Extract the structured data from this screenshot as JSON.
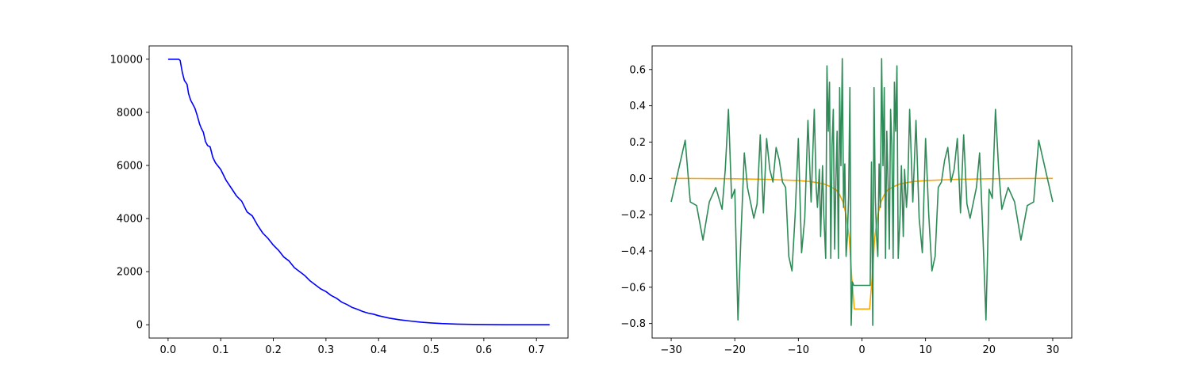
{
  "chart_data": [
    {
      "type": "line",
      "title": "",
      "xlabel": "",
      "ylabel": "",
      "xlim": [
        -0.036,
        0.76
      ],
      "ylim": [
        -500,
        10500
      ],
      "x_ticks": [
        "0.0",
        "0.1",
        "0.2",
        "0.3",
        "0.4",
        "0.5",
        "0.6",
        "0.7"
      ],
      "y_ticks": [
        "0",
        "2000",
        "4000",
        "6000",
        "8000",
        "10000"
      ],
      "grid": false,
      "series": [
        {
          "color": "#0000ff",
          "x": [
            0.0,
            0.01,
            0.02,
            0.023,
            0.027,
            0.031,
            0.036,
            0.039,
            0.043,
            0.047,
            0.051,
            0.055,
            0.06,
            0.063,
            0.067,
            0.071,
            0.075,
            0.08,
            0.085,
            0.09,
            0.094,
            0.1,
            0.11,
            0.12,
            0.13,
            0.14,
            0.15,
            0.16,
            0.17,
            0.18,
            0.19,
            0.2,
            0.21,
            0.22,
            0.23,
            0.24,
            0.25,
            0.26,
            0.27,
            0.28,
            0.29,
            0.3,
            0.31,
            0.32,
            0.33,
            0.34,
            0.35,
            0.36,
            0.37,
            0.38,
            0.39,
            0.4,
            0.42,
            0.44,
            0.46,
            0.48,
            0.5,
            0.52,
            0.55,
            0.58,
            0.62,
            0.66,
            0.7,
            0.725
          ],
          "y": [
            10000,
            10000,
            10000,
            9950,
            9500,
            9200,
            9050,
            8700,
            8450,
            8300,
            8150,
            7900,
            7550,
            7400,
            7250,
            6900,
            6750,
            6700,
            6300,
            6100,
            6000,
            5850,
            5450,
            5150,
            4850,
            4650,
            4250,
            4100,
            3750,
            3450,
            3250,
            3000,
            2800,
            2550,
            2400,
            2150,
            2000,
            1850,
            1650,
            1500,
            1350,
            1250,
            1100,
            1000,
            850,
            760,
            650,
            580,
            500,
            440,
            400,
            340,
            250,
            190,
            140,
            100,
            70,
            45,
            25,
            12,
            5,
            2,
            0,
            0
          ]
        }
      ]
    },
    {
      "type": "line",
      "title": "",
      "xlabel": "",
      "ylabel": "",
      "xlim": [
        -33,
        33
      ],
      "ylim": [
        -0.88,
        0.73
      ],
      "x_ticks": [
        "−30",
        "−20",
        "−10",
        "0",
        "10",
        "20",
        "30"
      ],
      "y_ticks": [
        "−0.8",
        "−0.6",
        "−0.4",
        "−0.2",
        "0.0",
        "0.2",
        "0.4",
        "0.6"
      ],
      "grid": false,
      "series": [
        {
          "color": "#ffa500",
          "x": [
            -30,
            -25,
            -20,
            -15,
            -10,
            -8,
            -6,
            -5,
            -4,
            -3.5,
            -3,
            -2.5,
            -2,
            -1.6,
            -1.2,
            1.2,
            1.6,
            2,
            2.5,
            3,
            3.5,
            4,
            5,
            6,
            8,
            10,
            15,
            20,
            25,
            30
          ],
          "y": [
            0,
            -0.001,
            -0.002,
            -0.005,
            -0.012,
            -0.018,
            -0.03,
            -0.045,
            -0.065,
            -0.09,
            -0.13,
            -0.2,
            -0.33,
            -0.55,
            -0.72,
            -0.72,
            -0.55,
            -0.33,
            -0.2,
            -0.13,
            -0.09,
            -0.065,
            -0.045,
            -0.03,
            -0.018,
            -0.012,
            -0.005,
            -0.002,
            -0.001,
            0
          ]
        },
        {
          "color": "#2e8b57",
          "x": [
            -30,
            -27.8,
            -27,
            -26,
            -25,
            -24,
            -23,
            -22,
            -21.5,
            -21,
            -20.5,
            -20,
            -19.5,
            -19,
            -18.5,
            -18,
            -17,
            -16.5,
            -16,
            -15.5,
            -15,
            -14.5,
            -14,
            -13.5,
            -13,
            -12.5,
            -12,
            -11.5,
            -11,
            -10.5,
            -10,
            -9.5,
            -9,
            -8.5,
            -8,
            -7.5,
            -7.2,
            -7,
            -6.7,
            -6.5,
            -6.2,
            -6,
            -5.7,
            -5.5,
            -5.3,
            -5.1,
            -4.9,
            -4.7,
            -4.5,
            -4.3,
            -4.1,
            -3.9,
            -3.7,
            -3.5,
            -3.3,
            -3.1,
            -2.9,
            -2.7,
            -2.5,
            -2.3,
            -2.1,
            -1.9,
            -1.7,
            -1.5,
            -1.3,
            -1.1,
            1.1,
            1.3,
            1.5,
            1.7,
            1.9,
            2.1,
            2.3,
            2.5,
            2.7,
            2.9,
            3.1,
            3.3,
            3.5,
            3.7,
            3.9,
            4.1,
            4.3,
            4.5,
            4.7,
            4.9,
            5.1,
            5.3,
            5.5,
            5.7,
            6,
            6.2,
            6.5,
            6.7,
            7,
            7.2,
            7.5,
            8,
            8.5,
            9,
            9.5,
            10,
            10.5,
            11,
            11.5,
            12,
            12.5,
            13,
            13.5,
            14,
            14.5,
            15,
            15.5,
            16,
            16.5,
            17,
            18,
            18.5,
            19,
            19.5,
            20,
            20.5,
            21,
            21.5,
            22,
            23,
            24,
            25,
            26,
            27,
            27.8,
            30
          ],
          "y": [
            -0.13,
            0.21,
            -0.13,
            -0.15,
            -0.34,
            -0.13,
            -0.05,
            -0.17,
            0.05,
            0.38,
            -0.11,
            -0.06,
            -0.78,
            -0.29,
            0.14,
            -0.05,
            -0.22,
            -0.14,
            0.24,
            -0.19,
            0.22,
            0.05,
            -0.02,
            0.17,
            0.1,
            -0.02,
            -0.05,
            -0.43,
            -0.51,
            -0.2,
            0.22,
            -0.41,
            -0.22,
            0.32,
            -0.13,
            0.38,
            -0.05,
            -0.16,
            0.05,
            -0.32,
            0.07,
            -0.2,
            -0.44,
            0.62,
            0.26,
            0.53,
            -0.44,
            0.18,
            0.38,
            -0.39,
            -0.02,
            0.26,
            -0.44,
            0.5,
            0.07,
            0.66,
            -0.16,
            0.08,
            -0.43,
            -0.32,
            -0.1,
            0.5,
            -0.81,
            -0.57,
            -0.59,
            -0.59,
            -0.59,
            -0.59,
            0.09,
            -0.81,
            0.5,
            -0.1,
            -0.32,
            -0.43,
            0.08,
            -0.16,
            0.66,
            0.07,
            0.5,
            -0.44,
            0.26,
            -0.02,
            -0.39,
            0.38,
            0.18,
            -0.44,
            0.53,
            0.26,
            0.62,
            -0.44,
            -0.2,
            0.07,
            -0.32,
            0.05,
            -0.16,
            -0.05,
            0.38,
            -0.13,
            0.32,
            -0.22,
            -0.41,
            0.22,
            -0.2,
            -0.51,
            -0.43,
            -0.05,
            -0.02,
            0.1,
            0.17,
            -0.02,
            0.05,
            0.22,
            -0.19,
            0.24,
            -0.14,
            -0.22,
            -0.05,
            0.14,
            -0.29,
            -0.78,
            -0.06,
            -0.11,
            0.38,
            0.05,
            -0.17,
            -0.05,
            -0.13,
            -0.34,
            -0.15,
            -0.13,
            0.21,
            -0.13
          ]
        }
      ]
    }
  ]
}
